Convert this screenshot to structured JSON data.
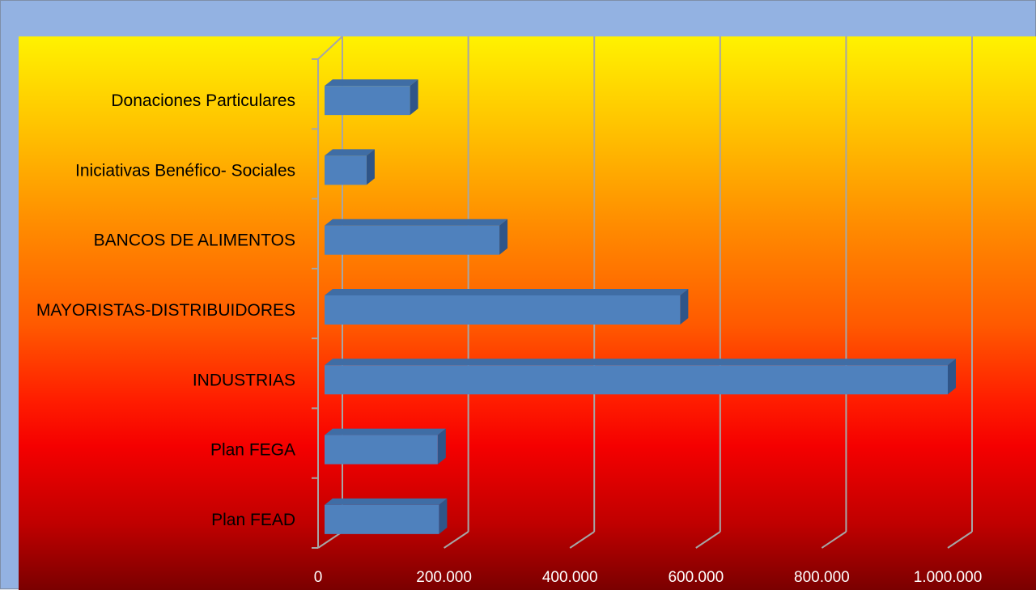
{
  "chart_data": {
    "type": "bar",
    "orientation": "horizontal",
    "style": "3d-clustered",
    "categories": [
      "Plan FEAD",
      "Plan FEGA",
      "INDUSTRIAS",
      "MAYORISTAS-DISTRIBUIDORES",
      "BANCOS DE ALIMENTOS",
      "Iniciativas Benéfico- Sociales",
      "Donaciones Particulares"
    ],
    "values": [
      192000,
      190000,
      1000000,
      575000,
      288000,
      77000,
      146000
    ],
    "title": "",
    "xlabel": "",
    "ylabel": "",
    "xlim": [
      0,
      1000000
    ],
    "xticks": [
      0,
      200000,
      400000,
      600000,
      800000,
      1000000
    ],
    "xtick_labels": [
      "0",
      "200.000",
      "400.000",
      "600.000",
      "800.000",
      "1.000.000"
    ],
    "grid": "vertical",
    "legend": "none",
    "colors": {
      "bar_front": "#4f81bd",
      "bar_top": "#3f6da5",
      "bar_side": "#2f5588",
      "grid": "#a6a6a6"
    }
  }
}
